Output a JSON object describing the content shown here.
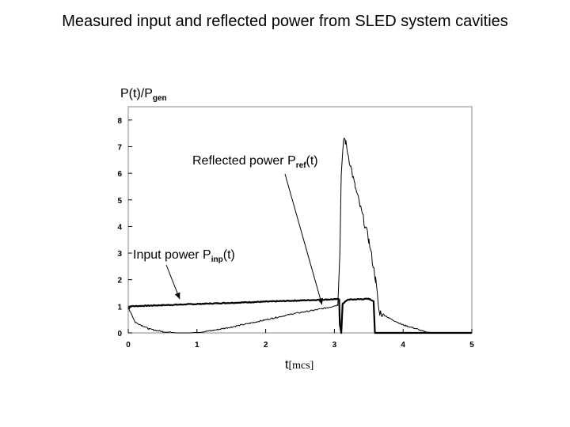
{
  "slide_title": "Measured input and reflected power from SLED system cavities",
  "chart_data": {
    "type": "line",
    "ylabel": {
      "main": "P(t)/P",
      "sub": "gen"
    },
    "xlabel": {
      "main": "t",
      "unit": "[mcs]"
    },
    "xlim": [
      0,
      5
    ],
    "ylim": [
      0,
      8.5
    ],
    "x_ticks": [
      "0",
      "1",
      "2",
      "3",
      "4",
      "5"
    ],
    "y_ticks": [
      "0",
      "1",
      "2",
      "3",
      "4",
      "5",
      "6",
      "7",
      "8"
    ],
    "annotations": [
      {
        "main": "Reflected power P",
        "sub": "ref",
        "tail": "(t)",
        "points_to": [
          2.82,
          0.82
        ]
      },
      {
        "main": "Input power P",
        "sub": "inp",
        "tail": "(t)",
        "points_to": [
          0.75,
          1.0
        ]
      }
    ],
    "series": [
      {
        "x": [
          0,
          0.03,
          3.07,
          3.08,
          3.1,
          3.12,
          3.2,
          3.5,
          3.57,
          3.59,
          5.0
        ],
        "y": [
          0.9,
          1.0,
          1.27,
          0.3,
          0.0,
          1.1,
          1.25,
          1.28,
          1.2,
          0.0,
          0.0
        ]
      },
      {
        "x": [
          0,
          0.05,
          0.1,
          0.2,
          0.3,
          0.5,
          0.7,
          0.9,
          1.0,
          1.2,
          1.5,
          1.8,
          2.1,
          2.4,
          2.7,
          2.9,
          3.05,
          3.08,
          3.1,
          3.14,
          3.16,
          3.3,
          3.5,
          3.6,
          3.65,
          3.8,
          4.0,
          4.2,
          4.3,
          4.45,
          5.0
        ],
        "y": [
          0.95,
          0.7,
          0.4,
          0.28,
          0.15,
          0.05,
          0.0,
          0.0,
          0.02,
          0.08,
          0.22,
          0.38,
          0.55,
          0.72,
          0.85,
          0.95,
          1.05,
          3.0,
          6.0,
          7.35,
          7.2,
          5.5,
          3.5,
          2.0,
          0.8,
          0.55,
          0.3,
          0.15,
          0.05,
          0.0,
          0.0
        ]
      }
    ]
  }
}
